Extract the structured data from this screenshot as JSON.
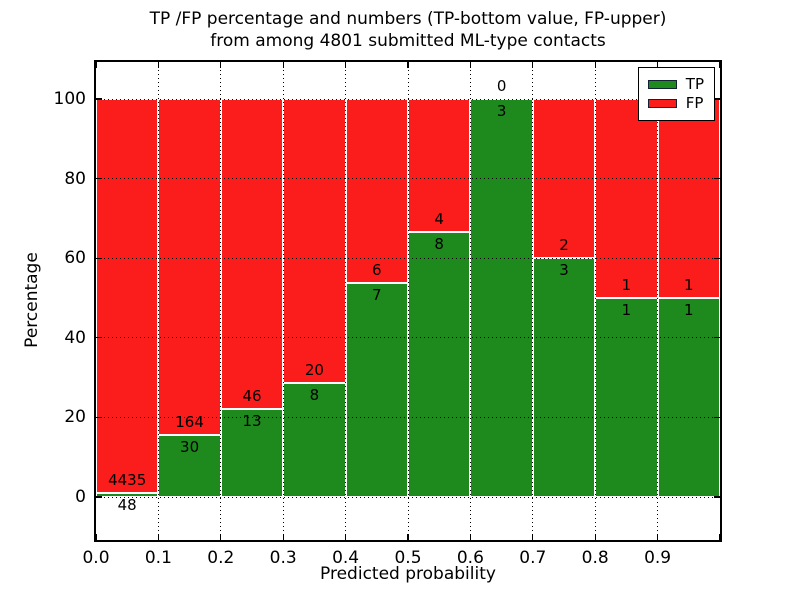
{
  "header": {
    "title_line1": "TP /FP percentage and numbers (TP-bottom value, FP-upper)",
    "title_line2": "from among 4801 submitted ML-type contacts"
  },
  "chart_data": {
    "type": "bar",
    "stacked": true,
    "title": "TP /FP percentage and numbers (TP-bottom value, FP-upper) from among 4801 submitted ML-type contacts",
    "total_contacts_shown_in_title": 4801,
    "categories": [
      "0.0-0.1",
      "0.1-0.2",
      "0.2-0.3",
      "0.3-0.4",
      "0.4-0.5",
      "0.5-0.6",
      "0.6-0.7",
      "0.7-0.8",
      "0.8-0.9",
      "0.9-1.0"
    ],
    "bin_width": 0.1,
    "series": [
      {
        "name": "TP",
        "color": "#1e8a1e",
        "counts": [
          48,
          30,
          13,
          8,
          7,
          8,
          3,
          3,
          1,
          1
        ]
      },
      {
        "name": "FP",
        "color": "#fb1c1c",
        "counts": [
          4435,
          164,
          46,
          20,
          6,
          4,
          0,
          2,
          1,
          1
        ]
      }
    ],
    "bar_value_is_percent_of_bin_total": true,
    "xlabel": "Predicted probability",
    "ylabel": "Percentage",
    "x_ticks": [
      "0.0",
      "0.1",
      "0.2",
      "0.3",
      "0.4",
      "0.5",
      "0.6",
      "0.7",
      "0.8",
      "0.9"
    ],
    "y_ticks": [
      "0",
      "20",
      "40",
      "60",
      "80",
      "100"
    ],
    "xlim": [
      0.0,
      1.0
    ],
    "ylim": [
      -10.8,
      109.3
    ],
    "grid": "dotted",
    "legend": {
      "position": "upper right",
      "entries": [
        "TP",
        "FP"
      ]
    },
    "annotation_rule": "FP count above green/red boundary, TP count below boundary"
  }
}
